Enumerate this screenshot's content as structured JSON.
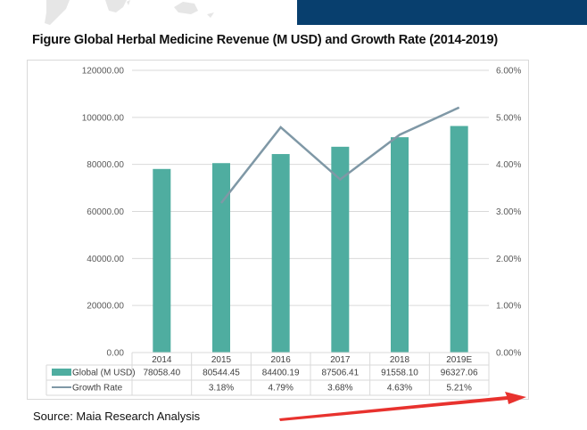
{
  "header": {
    "band_color": "#083f6e"
  },
  "title": "Figure Global Herbal Medicine Revenue (M USD) and Growth Rate (2014-2019)",
  "source": "Source: Maia Research Analysis",
  "chart_data": {
    "type": "bar",
    "title": "Figure Global Herbal Medicine Revenue (M USD) and Growth Rate (2014-2019)",
    "categories": [
      "2014",
      "2015",
      "2016",
      "2017",
      "2018",
      "2019E"
    ],
    "series": [
      {
        "name": "Global (M USD)",
        "type": "bar",
        "axis": "left",
        "color": "#4fada0",
        "values": [
          78058.4,
          80544.45,
          84400.19,
          87506.41,
          91558.1,
          96327.06
        ],
        "labels": [
          "78058.40",
          "80544.45",
          "84400.19",
          "87506.41",
          "91558.10",
          "96327.06"
        ]
      },
      {
        "name": "Growth Rate",
        "type": "line",
        "axis": "right",
        "color": "#7f98a6",
        "values": [
          null,
          3.18,
          4.79,
          3.68,
          4.63,
          5.21
        ],
        "labels": [
          "",
          "3.18%",
          "4.79%",
          "3.68%",
          "4.63%",
          "5.21%"
        ]
      }
    ],
    "y_left": {
      "ylim": [
        0,
        120000
      ],
      "ticks": [
        "0.00",
        "20000.00",
        "40000.00",
        "60000.00",
        "80000.00",
        "100000.00",
        "120000.00"
      ]
    },
    "y_right": {
      "ylim": [
        0,
        6
      ],
      "ticks": [
        "0.00%",
        "1.00%",
        "2.00%",
        "3.00%",
        "4.00%",
        "5.00%",
        "6.00%"
      ]
    },
    "grid": true,
    "legend": "data-table-bottom",
    "xlabel": "",
    "ylabel": ""
  },
  "annotation": {
    "type": "arrow",
    "color": "#e8322e",
    "direction": "right-up"
  }
}
